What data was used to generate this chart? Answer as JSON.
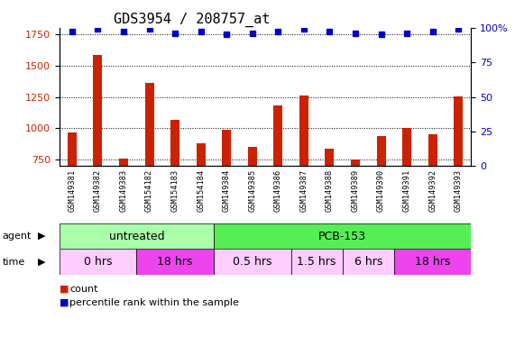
{
  "title": "GDS3954 / 208757_at",
  "samples": [
    "GSM149381",
    "GSM149382",
    "GSM149383",
    "GSM154182",
    "GSM154183",
    "GSM154184",
    "GSM149384",
    "GSM149385",
    "GSM149386",
    "GSM149387",
    "GSM149388",
    "GSM149389",
    "GSM149390",
    "GSM149391",
    "GSM149392",
    "GSM149393"
  ],
  "counts": [
    970,
    1580,
    760,
    1360,
    1065,
    880,
    990,
    855,
    1180,
    1260,
    840,
    755,
    940,
    1005,
    950,
    1255
  ],
  "percentile_ranks": [
    97,
    99,
    97,
    99,
    96,
    97,
    95,
    96,
    97,
    99,
    97,
    96,
    95,
    96,
    97,
    99
  ],
  "ylim_left": [
    700,
    1800
  ],
  "yticks_left": [
    750,
    1000,
    1250,
    1500,
    1750
  ],
  "ylim_right": [
    0,
    100
  ],
  "yticks_right": [
    0,
    25,
    50,
    75,
    100
  ],
  "bar_color": "#cc2200",
  "dot_color": "#0000cc",
  "agent_groups": [
    {
      "label": "untreated",
      "start": 0,
      "end": 6,
      "color": "#aaffaa"
    },
    {
      "label": "PCB-153",
      "start": 6,
      "end": 16,
      "color": "#55ee55"
    }
  ],
  "time_groups": [
    {
      "label": "0 hrs",
      "start": 0,
      "end": 3,
      "color": "#ffccff"
    },
    {
      "label": "18 hrs",
      "start": 3,
      "end": 6,
      "color": "#ee44ee"
    },
    {
      "label": "0.5 hrs",
      "start": 6,
      "end": 9,
      "color": "#ffccff"
    },
    {
      "label": "1.5 hrs",
      "start": 9,
      "end": 11,
      "color": "#ffccff"
    },
    {
      "label": "6 hrs",
      "start": 11,
      "end": 13,
      "color": "#ffccff"
    },
    {
      "label": "18 hrs",
      "start": 13,
      "end": 16,
      "color": "#ee44ee"
    }
  ],
  "plot_bg": "#ffffff",
  "xtick_bg": "#cccccc",
  "grid_color": "#000000",
  "title_fontsize": 11,
  "tick_fontsize": 8,
  "bar_width": 0.35
}
